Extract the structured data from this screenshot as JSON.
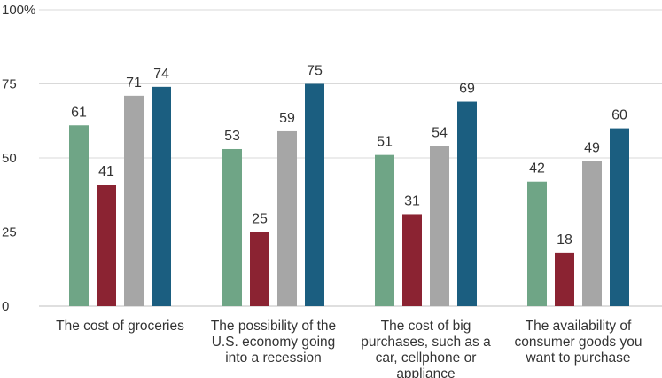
{
  "chart_data": {
    "type": "bar",
    "y_unit_label": "100%",
    "categories": [
      [
        "The cost of groceries"
      ],
      [
        "The possibility of the",
        "U.S. economy going",
        "into a recession"
      ],
      [
        "The cost of big",
        "purchases, such as a",
        "car, cellphone or",
        "appliance"
      ],
      [
        "The availability of",
        "consumer goods you",
        "want to purchase"
      ]
    ],
    "series": [
      {
        "values": [
          61,
          53,
          51,
          42
        ],
        "color": "#6fa586"
      },
      {
        "values": [
          41,
          25,
          31,
          18
        ],
        "color": "#8b2332"
      },
      {
        "values": [
          71,
          59,
          54,
          49
        ],
        "color": "#a6a6a6"
      },
      {
        "values": [
          74,
          75,
          69,
          60
        ],
        "color": "#1b5e80"
      }
    ],
    "ylim": [
      0,
      100
    ],
    "yticks": [
      0,
      25,
      50,
      75,
      100
    ],
    "grid": true,
    "legend": "none"
  }
}
